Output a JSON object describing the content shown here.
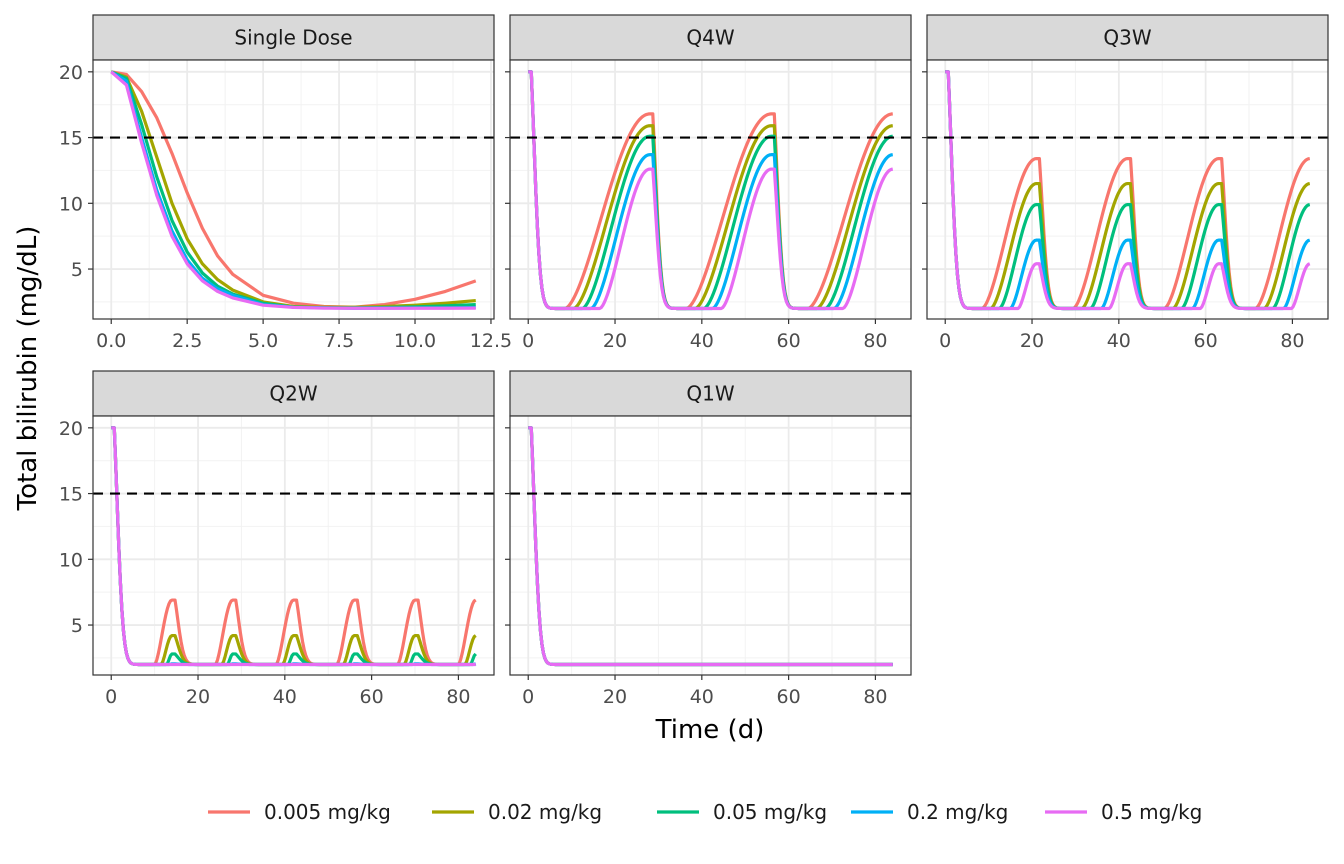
{
  "chart_data": {
    "type": "line",
    "xlabel": "Time (d)",
    "ylabel": "Total bilirubin (mg/dL)",
    "ylim": [
      1.2,
      20.9
    ],
    "y_ticks": [
      5,
      10,
      15,
      20
    ],
    "threshold": 15,
    "threshold_style": "dashed",
    "legend_position": "bottom",
    "grid": true,
    "series": [
      {
        "name": "0.005 mg/kg",
        "color": "#F8766D"
      },
      {
        "name": "0.02 mg/kg",
        "color": "#A3A500"
      },
      {
        "name": "0.05 mg/kg",
        "color": "#00BF7D"
      },
      {
        "name": "0.2 mg/kg",
        "color": "#00B0F6"
      },
      {
        "name": "0.5 mg/kg",
        "color": "#E76BF3"
      }
    ],
    "facets": [
      {
        "title": "Single Dose",
        "xlim": [
          -0.6,
          12.6
        ],
        "x_ticks": [
          0,
          2.5,
          5,
          7.5,
          10,
          12.5
        ],
        "x_tick_labels": [
          "0.0",
          "2.5",
          "5.0",
          "7.5",
          "10.0",
          "12.5"
        ],
        "x": [
          0,
          0.5,
          1,
          1.5,
          2,
          2.5,
          3,
          3.5,
          4,
          5,
          6,
          7,
          8,
          9,
          10,
          11,
          12
        ],
        "values": [
          [
            20,
            19.8,
            18.5,
            16.5,
            13.8,
            10.8,
            8.1,
            6.0,
            4.6,
            3.0,
            2.4,
            2.15,
            2.1,
            2.3,
            2.7,
            3.3,
            4.1
          ],
          [
            20,
            19.6,
            17.0,
            13.5,
            10.0,
            7.3,
            5.4,
            4.2,
            3.4,
            2.5,
            2.15,
            2.1,
            2.1,
            2.15,
            2.25,
            2.4,
            2.6
          ],
          [
            20,
            19.5,
            16.0,
            12.0,
            8.7,
            6.3,
            4.7,
            3.7,
            3.1,
            2.4,
            2.1,
            2.05,
            2.05,
            2.08,
            2.12,
            2.2,
            2.3
          ],
          [
            20,
            19.3,
            15.0,
            11.0,
            7.9,
            5.7,
            4.3,
            3.5,
            3.0,
            2.3,
            2.1,
            2.05,
            2.02,
            2.03,
            2.04,
            2.05,
            2.07
          ],
          [
            20,
            19.0,
            14.6,
            10.6,
            7.5,
            5.4,
            4.1,
            3.3,
            2.8,
            2.25,
            2.08,
            2.03,
            2.02,
            2.02,
            2.02,
            2.02,
            2.03
          ]
        ]
      },
      {
        "title": "Q4W",
        "xlim": [
          -4.2,
          88.2
        ],
        "x_ticks": [
          0,
          20,
          40,
          60,
          80
        ],
        "x_tick_labels": [
          "0",
          "20",
          "40",
          "60",
          "80"
        ],
        "dose_interval": 28,
        "peaks": [
          16.8,
          15.9,
          15.1,
          13.7,
          12.6
        ],
        "lag_days": [
          8.5,
          10.5,
          12.5,
          14.5,
          16.5
        ]
      },
      {
        "title": "Q3W",
        "xlim": [
          -4.2,
          88.2
        ],
        "x_ticks": [
          0,
          20,
          40,
          60,
          80
        ],
        "x_tick_labels": [
          "0",
          "20",
          "40",
          "60",
          "80"
        ],
        "dose_interval": 21,
        "peaks": [
          13.4,
          11.5,
          9.9,
          7.2,
          5.4
        ],
        "lag_days": [
          8.5,
          10.5,
          12.5,
          15,
          16.8
        ]
      },
      {
        "title": "Q2W",
        "xlim": [
          -4.2,
          88.2
        ],
        "x_ticks": [
          0,
          20,
          40,
          60,
          80
        ],
        "x_tick_labels": [
          "0",
          "20",
          "40",
          "60",
          "80"
        ],
        "dose_interval": 14,
        "peaks": [
          6.9,
          4.2,
          2.8,
          2.05,
          2.0
        ],
        "lag_days": [
          10,
          11.5,
          12.8,
          13.5,
          13.9
        ]
      },
      {
        "title": "Q1W",
        "xlim": [
          -4.2,
          88.2
        ],
        "x_ticks": [
          0,
          20,
          40,
          60,
          80
        ],
        "x_tick_labels": [
          "0",
          "20",
          "40",
          "60",
          "80"
        ],
        "dose_interval": 7,
        "peaks": [
          2.0,
          2.0,
          2.0,
          2.0,
          2.0
        ],
        "lag_days": [
          7,
          7,
          7,
          7,
          7
        ]
      }
    ]
  }
}
